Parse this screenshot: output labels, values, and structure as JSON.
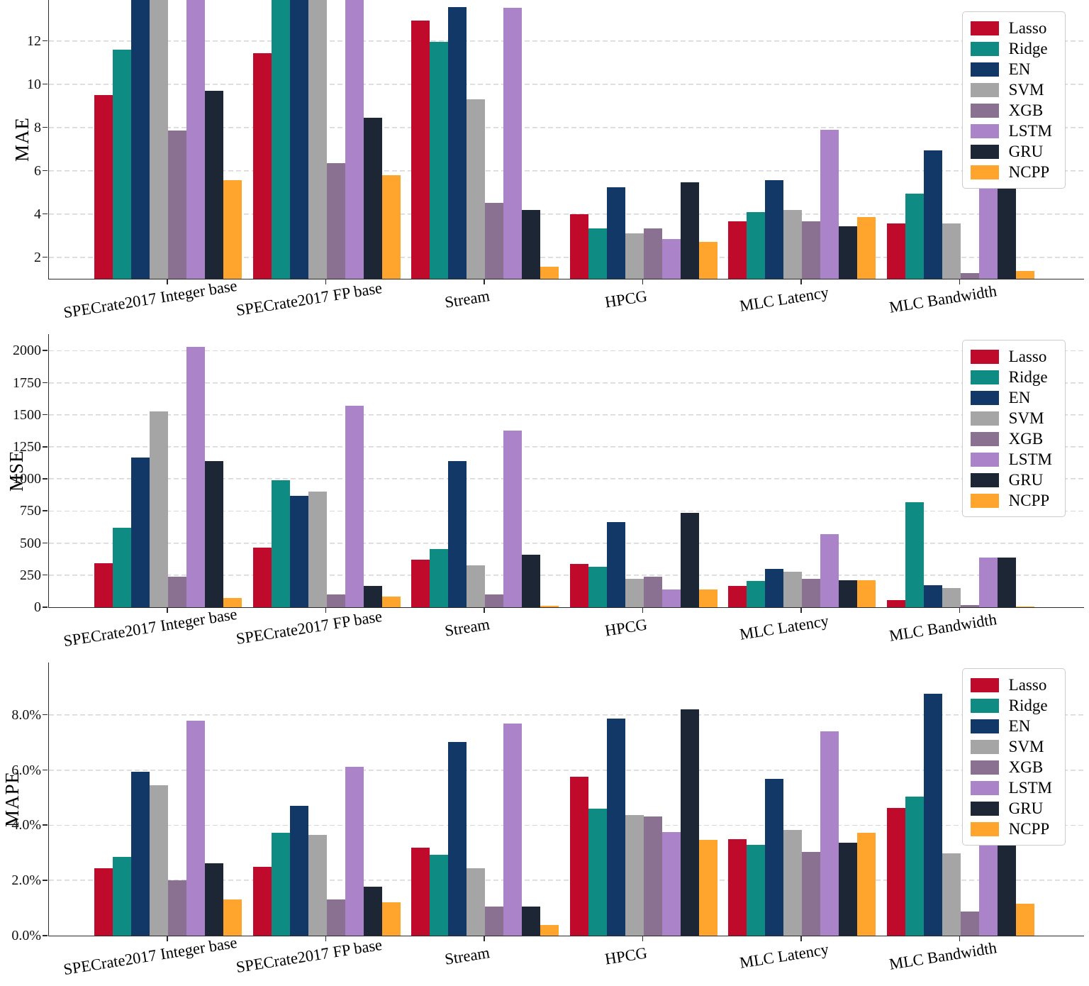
{
  "figure_type": "three stacked grouped bar charts comparing regression models",
  "categories": [
    "SPECrate2017 Integer base",
    "SPECrate2017 FP base",
    "Stream",
    "HPCG",
    "MLC Latency",
    "MLC Bandwidth"
  ],
  "series_names": [
    "Lasso",
    "Ridge",
    "EN",
    "SVM",
    "XGB",
    "LSTM",
    "GRU",
    "NCPP"
  ],
  "palette": {
    "Lasso": "#c00a2c",
    "Ridge": "#0e8c84",
    "EN": "#113866",
    "SVM": "#a5a5a5",
    "XGB": "#8b7191",
    "LSTM": "#ab83c8",
    "GRU": "#1c2634",
    "NCPP": "#ffa52e"
  },
  "chart_data": [
    {
      "type": "bar",
      "ylabel": "MAE",
      "ymin": 1.0,
      "ymax": 13.9,
      "yticks": [
        2,
        4,
        6,
        8,
        10,
        12
      ],
      "ytick_labels": [
        "2",
        "4",
        "6",
        "8",
        "10",
        "12"
      ],
      "grid": "horizontal-dashed",
      "legend_position": "upper-right",
      "bars_exceeding_ymax_are_clipped": true,
      "categories": [
        "SPECrate2017 Integer base",
        "SPECrate2017 FP base",
        "Stream",
        "HPCG",
        "MLC Latency",
        "MLC Bandwidth"
      ],
      "series": [
        {
          "name": "Lasso",
          "color": "#c00a2c",
          "values": [
            9.5,
            11.45,
            12.95,
            4.0,
            3.67,
            3.55
          ]
        },
        {
          "name": "Ridge",
          "color": "#0e8c84",
          "values": [
            11.6,
            14.2,
            11.95,
            3.33,
            4.1,
            4.95
          ]
        },
        {
          "name": "EN",
          "color": "#113866",
          "values": [
            14.2,
            14.2,
            13.57,
            5.25,
            5.55,
            6.95
          ]
        },
        {
          "name": "SVM",
          "color": "#a5a5a5",
          "values": [
            14.2,
            14.2,
            9.3,
            3.1,
            4.2,
            3.55
          ]
        },
        {
          "name": "XGB",
          "color": "#8b7191",
          "values": [
            7.85,
            6.35,
            4.5,
            3.33,
            3.66,
            1.25
          ]
        },
        {
          "name": "LSTM",
          "color": "#ab83c8",
          "values": [
            14.2,
            14.2,
            13.55,
            2.85,
            7.9,
            6.1
          ]
        },
        {
          "name": "GRU",
          "color": "#1c2634",
          "values": [
            9.7,
            8.45,
            4.17,
            5.45,
            3.44,
            6.0
          ]
        },
        {
          "name": "NCPP",
          "color": "#ffa52e",
          "values": [
            5.55,
            5.8,
            1.55,
            2.72,
            3.85,
            1.35
          ]
        }
      ]
    },
    {
      "type": "bar",
      "ylabel": "MSE",
      "ymin": 0,
      "ymax": 2130,
      "yticks": [
        0,
        250,
        500,
        750,
        1000,
        1250,
        1500,
        1750,
        2000
      ],
      "ytick_labels": [
        "0",
        "250",
        "500",
        "750",
        "1000",
        "1250",
        "1500",
        "1750",
        "2000"
      ],
      "grid": "horizontal-dashed",
      "legend_position": "upper-right",
      "categories": [
        "SPECrate2017 Integer base",
        "SPECrate2017 FP base",
        "Stream",
        "HPCG",
        "MLC Latency",
        "MLC Bandwidth"
      ],
      "series": [
        {
          "name": "Lasso",
          "color": "#c00a2c",
          "values": [
            342,
            467,
            371,
            340,
            168,
            55
          ]
        },
        {
          "name": "Ridge",
          "color": "#0e8c84",
          "values": [
            620,
            991,
            452,
            315,
            205,
            818
          ]
        },
        {
          "name": "EN",
          "color": "#113866",
          "values": [
            1165,
            867,
            1140,
            665,
            300,
            170
          ]
        },
        {
          "name": "SVM",
          "color": "#a5a5a5",
          "values": [
            1525,
            903,
            328,
            221,
            276,
            151
          ]
        },
        {
          "name": "XGB",
          "color": "#8b7191",
          "values": [
            237,
            100,
            101,
            236,
            221,
            18
          ]
        },
        {
          "name": "LSTM",
          "color": "#ab83c8",
          "values": [
            2028,
            1574,
            1380,
            136,
            569,
            387
          ]
        },
        {
          "name": "GRU",
          "color": "#1c2634",
          "values": [
            1139,
            168,
            407,
            734,
            210,
            387
          ]
        },
        {
          "name": "NCPP",
          "color": "#ffa52e",
          "values": [
            74,
            85,
            10,
            136,
            210,
            8
          ]
        }
      ]
    },
    {
      "type": "bar",
      "ylabel": "MAPE",
      "ymin": 0,
      "ymax": 9.9,
      "yticks": [
        0,
        2,
        4,
        6,
        8
      ],
      "ytick_labels": [
        "0.0%",
        "2.0%",
        "4.0%",
        "6.0%",
        "8.0%"
      ],
      "grid": "horizontal-dashed",
      "legend_position": "upper-right",
      "categories": [
        "SPECrate2017 Integer base",
        "SPECrate2017 FP base",
        "Stream",
        "HPCG",
        "MLC Latency",
        "MLC Bandwidth"
      ],
      "series": [
        {
          "name": "Lasso",
          "color": "#c00a2c",
          "values": [
            2.44,
            2.5,
            3.2,
            5.76,
            3.49,
            4.62
          ]
        },
        {
          "name": "Ridge",
          "color": "#0e8c84",
          "values": [
            2.86,
            3.72,
            2.93,
            4.6,
            3.28,
            5.03
          ]
        },
        {
          "name": "EN",
          "color": "#113866",
          "values": [
            5.94,
            4.71,
            7.03,
            7.87,
            5.68,
            8.78
          ]
        },
        {
          "name": "SVM",
          "color": "#a5a5a5",
          "values": [
            5.44,
            3.66,
            2.45,
            4.37,
            3.83,
            2.99
          ]
        },
        {
          "name": "XGB",
          "color": "#8b7191",
          "values": [
            2.01,
            1.3,
            1.06,
            4.31,
            3.03,
            0.88
          ]
        },
        {
          "name": "LSTM",
          "color": "#ab83c8",
          "values": [
            7.8,
            6.13,
            7.68,
            3.76,
            7.4,
            4.6
          ]
        },
        {
          "name": "GRU",
          "color": "#1c2634",
          "values": [
            2.63,
            1.77,
            1.05,
            8.21,
            3.38,
            4.4
          ]
        },
        {
          "name": "NCPP",
          "color": "#ffa52e",
          "values": [
            1.3,
            1.21,
            0.39,
            3.47,
            3.74,
            1.16
          ]
        }
      ]
    }
  ]
}
